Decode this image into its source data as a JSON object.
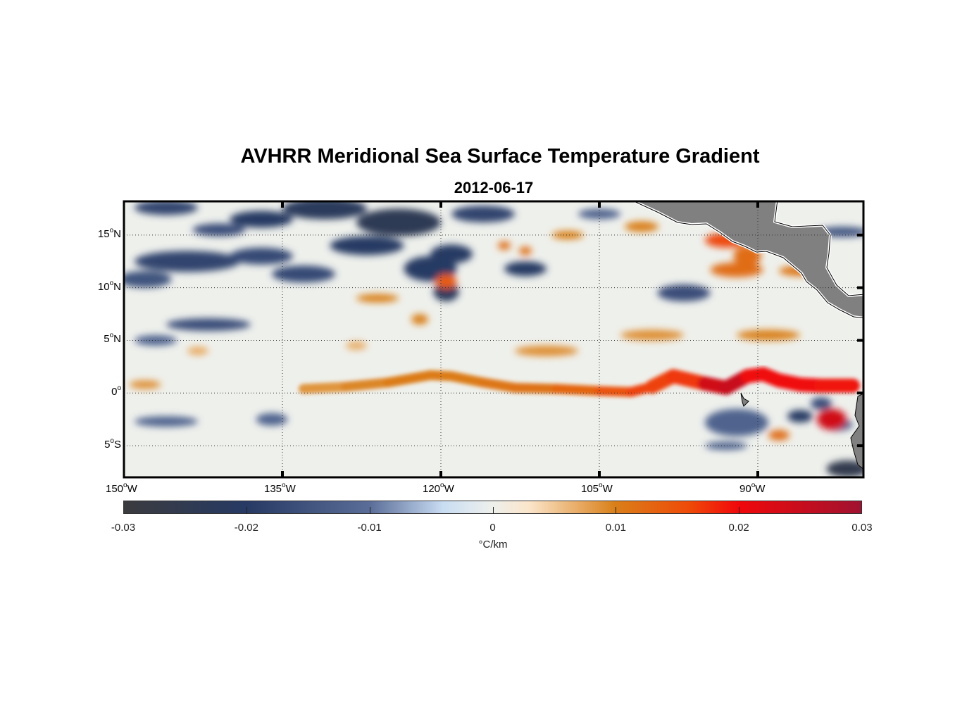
{
  "chart_data": {
    "type": "heatmap",
    "title": "AVHRR Meridional Sea Surface Temperature Gradient",
    "subtitle": "2012-06-17",
    "lon_range": [
      -150,
      -80
    ],
    "lat_range": [
      -8,
      18.2
    ],
    "lon_ticks": [
      {
        "value": -150,
        "num": "150",
        "hem": "W"
      },
      {
        "value": -135,
        "num": "135",
        "hem": "W"
      },
      {
        "value": -120,
        "num": "120",
        "hem": "W"
      },
      {
        "value": -105,
        "num": "105",
        "hem": "W"
      },
      {
        "value": -90,
        "num": "90",
        "hem": "W"
      }
    ],
    "lat_ticks": [
      {
        "value": 15,
        "num": "15",
        "hem": "N"
      },
      {
        "value": 10,
        "num": "10",
        "hem": "N"
      },
      {
        "value": 5,
        "num": "5",
        "hem": "N"
      },
      {
        "value": 0,
        "num": "0",
        "hem": ""
      },
      {
        "value": -5,
        "num": "5",
        "hem": "S"
      }
    ],
    "grid": true,
    "colorbar": {
      "min": -0.03,
      "max": 0.03,
      "ticks": [
        "-0.03",
        "-0.02",
        "-0.01",
        "0",
        "0.01",
        "0.02",
        "0.03"
      ],
      "tick_values": [
        -0.03,
        -0.02,
        -0.01,
        0,
        0.01,
        0.02,
        0.03
      ],
      "label": "°C/km",
      "placement": "bottom",
      "stops": [
        {
          "v": -0.03,
          "c": "#3b3b3e"
        },
        {
          "v": -0.02,
          "c": "#263a64"
        },
        {
          "v": -0.01,
          "c": "#5a6d98"
        },
        {
          "v": -0.004,
          "c": "#c9ddf3"
        },
        {
          "v": 0,
          "c": "#eef0ec"
        },
        {
          "v": 0.003,
          "c": "#fbe5c9"
        },
        {
          "v": 0.01,
          "c": "#d97f18"
        },
        {
          "v": 0.016,
          "c": "#ee4a08"
        },
        {
          "v": 0.02,
          "c": "#f0080a"
        },
        {
          "v": 0.03,
          "c": "#a01230"
        }
      ]
    },
    "equatorial_front": {
      "lon": [
        -133,
        -129,
        -125,
        -121,
        -119,
        -116,
        -113,
        -109,
        -105,
        -102,
        -100,
        -98,
        -95,
        -93,
        -91,
        -89.5,
        -88,
        -86,
        -84,
        -81
      ],
      "lat": [
        0.4,
        0.6,
        1.0,
        1.7,
        1.6,
        1.0,
        0.5,
        0.4,
        0.2,
        0.1,
        0.6,
        1.6,
        0.9,
        0.5,
        1.6,
        1.8,
        1.2,
        0.8,
        0.7,
        0.7
      ],
      "value": [
        0.008,
        0.009,
        0.01,
        0.011,
        0.01,
        0.011,
        0.011,
        0.012,
        0.014,
        0.016,
        0.017,
        0.016,
        0.018,
        0.03,
        0.02,
        0.02,
        0.019,
        0.02,
        0.02,
        0.018
      ]
    },
    "features": [
      {
        "lon": -146,
        "lat": 17.6,
        "v": -0.018,
        "w": 3,
        "h": 0.7
      },
      {
        "lon": -137,
        "lat": 16.5,
        "v": -0.02,
        "w": 3,
        "h": 0.8
      },
      {
        "lon": -141,
        "lat": 15.5,
        "v": -0.016,
        "w": 2.5,
        "h": 0.6
      },
      {
        "lon": -131,
        "lat": 17.5,
        "v": -0.022,
        "w": 4,
        "h": 1
      },
      {
        "lon": -124,
        "lat": 16.2,
        "v": -0.024,
        "w": 4,
        "h": 1.3
      },
      {
        "lon": -127,
        "lat": 14,
        "v": -0.02,
        "w": 3.5,
        "h": 0.9
      },
      {
        "lon": -144,
        "lat": 12.5,
        "v": -0.018,
        "w": 5,
        "h": 1
      },
      {
        "lon": -148,
        "lat": 10.8,
        "v": -0.015,
        "w": 2.5,
        "h": 0.8
      },
      {
        "lon": -137,
        "lat": 13,
        "v": -0.017,
        "w": 3,
        "h": 0.8
      },
      {
        "lon": -133,
        "lat": 11.3,
        "v": -0.017,
        "w": 3,
        "h": 0.8
      },
      {
        "lon": -121,
        "lat": 11.8,
        "v": -0.02,
        "w": 2.5,
        "h": 1.2
      },
      {
        "lon": -119,
        "lat": 13.2,
        "v": -0.02,
        "w": 2,
        "h": 0.9
      },
      {
        "lon": -119.5,
        "lat": 9.6,
        "v": -0.022,
        "w": 1.2,
        "h": 0.9
      },
      {
        "lon": -112,
        "lat": 11.8,
        "v": -0.02,
        "w": 2,
        "h": 0.7
      },
      {
        "lon": -116,
        "lat": 17,
        "v": -0.018,
        "w": 3,
        "h": 0.8
      },
      {
        "lon": -105,
        "lat": 17,
        "v": -0.012,
        "w": 2,
        "h": 0.5
      },
      {
        "lon": -97,
        "lat": 9.5,
        "v": -0.016,
        "w": 2.5,
        "h": 0.8
      },
      {
        "lon": -82,
        "lat": 15.3,
        "v": -0.014,
        "w": 2.5,
        "h": 0.5
      },
      {
        "lon": -142,
        "lat": 6.5,
        "v": -0.016,
        "w": 4,
        "h": 0.6
      },
      {
        "lon": -147,
        "lat": 5,
        "v": -0.012,
        "w": 2,
        "h": 0.5
      },
      {
        "lon": -146,
        "lat": -2.7,
        "v": -0.012,
        "w": 3,
        "h": 0.5
      },
      {
        "lon": -136,
        "lat": -2.5,
        "v": -0.012,
        "w": 1.5,
        "h": 0.6
      },
      {
        "lon": -92,
        "lat": -2.8,
        "v": -0.012,
        "w": 3,
        "h": 1.3
      },
      {
        "lon": -82.5,
        "lat": -3,
        "v": -0.012,
        "w": 1.5,
        "h": 0.6
      },
      {
        "lon": -84,
        "lat": -1,
        "v": -0.016,
        "w": 1,
        "h": 0.6
      },
      {
        "lon": -86,
        "lat": -2.2,
        "v": -0.02,
        "w": 1.2,
        "h": 0.6
      },
      {
        "lon": -81.5,
        "lat": -7.2,
        "v": -0.026,
        "w": 2,
        "h": 0.8
      },
      {
        "lon": -93,
        "lat": -5,
        "v": -0.012,
        "w": 2,
        "h": 0.4
      },
      {
        "lon": -119.5,
        "lat": 10.6,
        "v": 0.014,
        "w": 1,
        "h": 0.7
      },
      {
        "lon": -126,
        "lat": 9,
        "v": 0.01,
        "w": 2,
        "h": 0.4
      },
      {
        "lon": -122,
        "lat": 7,
        "v": 0.01,
        "w": 0.8,
        "h": 0.5
      },
      {
        "lon": -108,
        "lat": 15,
        "v": 0.01,
        "w": 1.5,
        "h": 0.4
      },
      {
        "lon": -101,
        "lat": 15.8,
        "v": 0.01,
        "w": 1.6,
        "h": 0.5
      },
      {
        "lon": -93,
        "lat": 14.5,
        "v": 0.016,
        "w": 2,
        "h": 0.7
      },
      {
        "lon": -91,
        "lat": 13,
        "v": 0.012,
        "w": 1.3,
        "h": 1
      },
      {
        "lon": -92,
        "lat": 11.7,
        "v": 0.012,
        "w": 2.5,
        "h": 0.7
      },
      {
        "lon": -86,
        "lat": 11.6,
        "v": 0.011,
        "w": 2,
        "h": 0.5
      },
      {
        "lon": -100,
        "lat": 5.5,
        "v": 0.009,
        "w": 3,
        "h": 0.5
      },
      {
        "lon": -89,
        "lat": 5.5,
        "v": 0.01,
        "w": 3,
        "h": 0.5
      },
      {
        "lon": -110,
        "lat": 4,
        "v": 0.009,
        "w": 3,
        "h": 0.5
      },
      {
        "lon": -83,
        "lat": -2.5,
        "v": 0.024,
        "w": 1.4,
        "h": 1
      },
      {
        "lon": -88,
        "lat": -4,
        "v": 0.012,
        "w": 1,
        "h": 0.5
      },
      {
        "lon": -148,
        "lat": 0.8,
        "v": 0.009,
        "w": 1.5,
        "h": 0.4
      },
      {
        "lon": -143,
        "lat": 4,
        "v": 0.007,
        "w": 1,
        "h": 0.4
      },
      {
        "lon": -112,
        "lat": 13.5,
        "v": 0.012,
        "w": 0.6,
        "h": 0.4
      },
      {
        "lon": -114,
        "lat": 14,
        "v": 0.012,
        "w": 0.6,
        "h": 0.4
      },
      {
        "lon": -128,
        "lat": 4.5,
        "v": 0.007,
        "w": 1,
        "h": 0.4
      }
    ]
  }
}
